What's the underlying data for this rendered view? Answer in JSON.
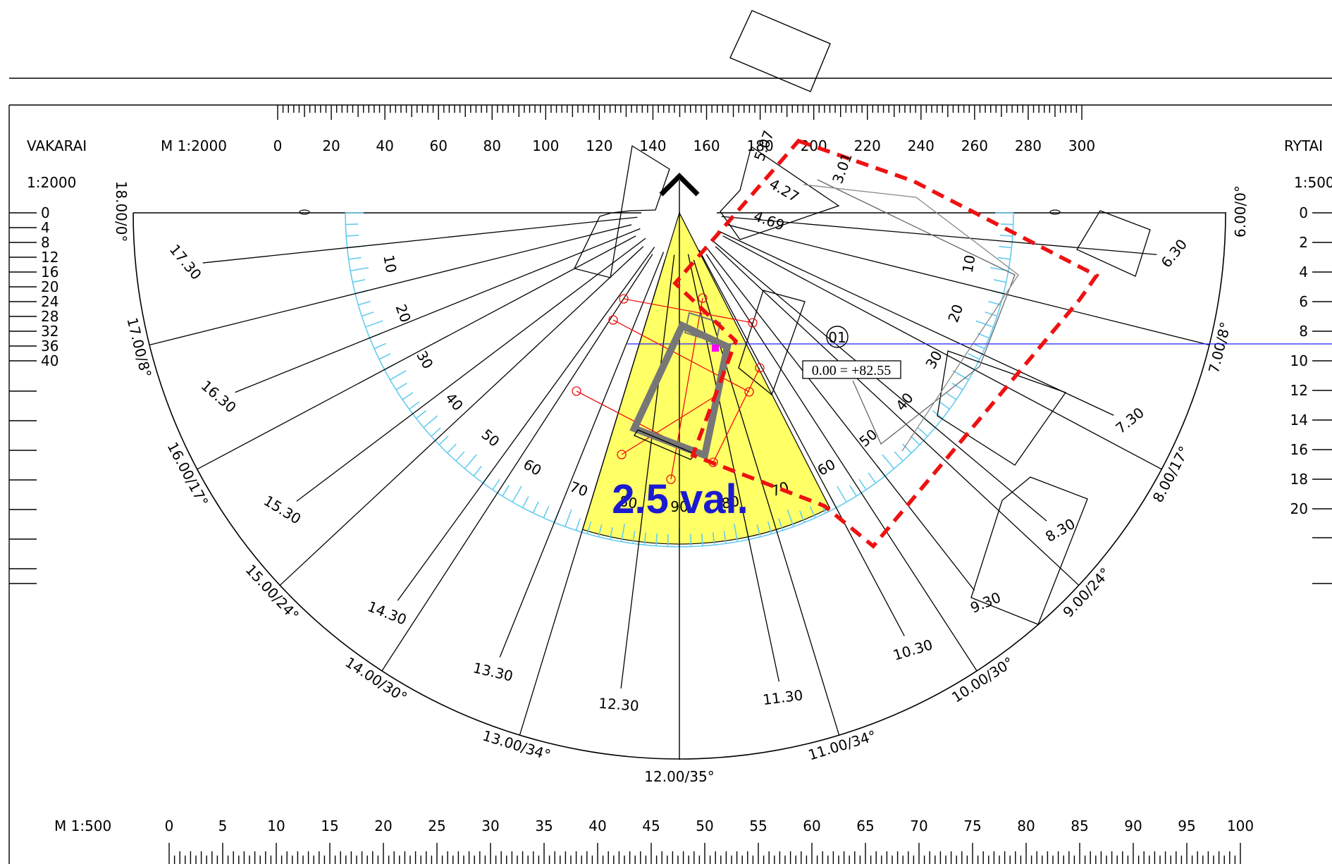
{
  "headings": {
    "left_title": "VAKARAI",
    "right_title": "RYTAI",
    "left_scale_ratio": "1:2000",
    "right_scale_ratio": "1:500",
    "top_scale_title": "M 1:2000",
    "bottom_scale_title": "M 1:500"
  },
  "top_scale_labels": [
    "0",
    "20",
    "40",
    "60",
    "80",
    "100",
    "120",
    "140",
    "160",
    "180",
    "200",
    "220",
    "240",
    "260",
    "280",
    "300"
  ],
  "bottom_scale_labels": [
    "0",
    "5",
    "10",
    "15",
    "20",
    "25",
    "30",
    "35",
    "40",
    "45",
    "50",
    "55",
    "60",
    "65",
    "70",
    "75",
    "80",
    "85",
    "90",
    "95",
    "100"
  ],
  "left_height_scale": [
    "0",
    "4",
    "8",
    "12",
    "16",
    "20",
    "24",
    "28",
    "32",
    "36",
    "40"
  ],
  "right_height_scale": [
    "0",
    "2",
    "4",
    "6",
    "8",
    "10",
    "12",
    "14",
    "16",
    "18",
    "20"
  ],
  "hour_rays": [
    {
      "time": "6.30",
      "azimuth": 85
    },
    {
      "time": "7.30",
      "azimuth": 65
    },
    {
      "time": "8.30",
      "azimuth": 50
    },
    {
      "time": "9.30",
      "azimuth": 38
    },
    {
      "time": "10.30",
      "azimuth": 28
    },
    {
      "time": "11.30",
      "azimuth": 12
    },
    {
      "time": "12.30",
      "azimuth": -7
    },
    {
      "time": "13.30",
      "azimuth": -22
    },
    {
      "time": "14.30",
      "azimuth": -36
    },
    {
      "time": "15.30",
      "azimuth": -53
    },
    {
      "time": "16.30",
      "azimuth": -68
    },
    {
      "time": "17.30",
      "azimuth": -84
    }
  ],
  "hour_rim_labels": [
    {
      "label": "6.00/0°",
      "azimuth": 90
    },
    {
      "label": "7.00/8°",
      "azimuth": 76
    },
    {
      "label": "8.00/17°",
      "azimuth": 62
    },
    {
      "label": "9.00/24°",
      "azimuth": 47
    },
    {
      "label": "10.00/30°",
      "azimuth": 33
    },
    {
      "label": "11.00/34°",
      "azimuth": 17
    },
    {
      "label": "12.00/35°",
      "azimuth": 0
    },
    {
      "label": "13.00/34°",
      "azimuth": -17
    },
    {
      "label": "14.00/30°",
      "azimuth": -33
    },
    {
      "label": "15.00/24°",
      "azimuth": -47
    },
    {
      "label": "16.00/17°",
      "azimuth": -62
    },
    {
      "label": "17.00/8°",
      "azimuth": -76
    },
    {
      "label": "18.00/0°",
      "azimuth": -90
    }
  ],
  "inner_angle_labels": [
    "10",
    "20",
    "30",
    "40",
    "50",
    "60",
    "70",
    "80",
    "90"
  ],
  "measurements": [
    "5.07",
    "3.01",
    "4.27",
    "4.69"
  ],
  "point_marker": "01",
  "elevation_label": "0.00 = +82.55",
  "highlight_label": "2.5 val.",
  "colors": {
    "shade": "#ffff66",
    "protractor": "#66ccee",
    "plot_boundary": "#ee1111",
    "highlight_text": "#1a1ad0",
    "building": "#777777",
    "construction": "#ee1111",
    "horizon_line": "#2222ff",
    "marker": "#ff00ff"
  }
}
